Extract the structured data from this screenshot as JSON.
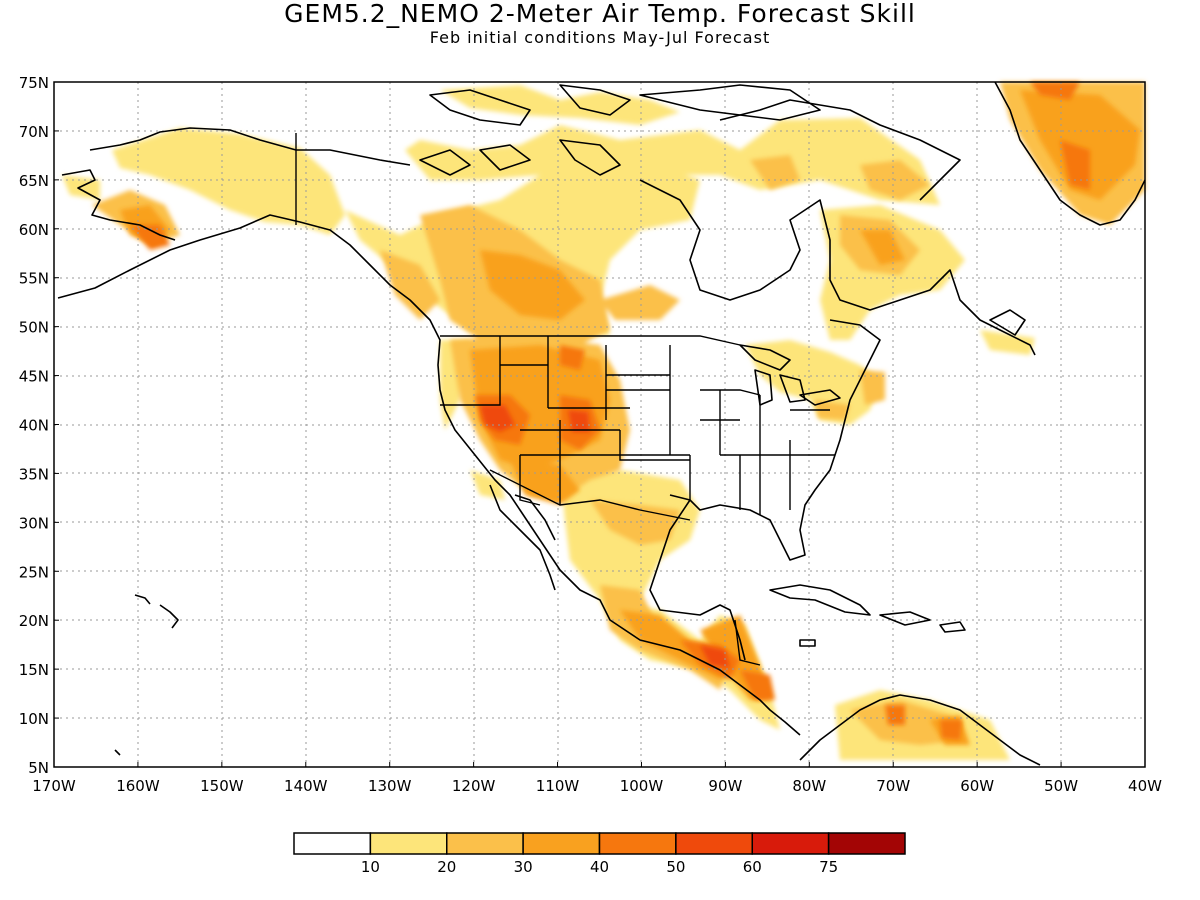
{
  "title": "GEM5.2_NEMO 2-Meter Air Temp. Forecast Skill",
  "subtitle": "Feb initial conditions   May-Jul Forecast",
  "map": {
    "lon_range": [
      -170,
      -40
    ],
    "lat_range": [
      5,
      75
    ],
    "lat_labels": [
      "75N",
      "70N",
      "65N",
      "60N",
      "55N",
      "50N",
      "45N",
      "40N",
      "35N",
      "30N",
      "25N",
      "20N",
      "15N",
      "10N",
      "5N"
    ],
    "lon_labels": [
      "170W",
      "160W",
      "150W",
      "140W",
      "130W",
      "120W",
      "110W",
      "100W",
      "90W",
      "80W",
      "70W",
      "60W",
      "50W",
      "40W"
    ],
    "grid": true
  },
  "colorbar": {
    "colors": [
      "#ffffff",
      "#fde57a",
      "#fbc04a",
      "#f9a11f",
      "#f6770e",
      "#ef4a0c",
      "#d81b0b",
      "#a30505"
    ],
    "labels": [
      "10",
      "20",
      "30",
      "40",
      "50",
      "60",
      "75"
    ]
  },
  "land_color": "#ffffff",
  "outline_color": "#000000"
}
